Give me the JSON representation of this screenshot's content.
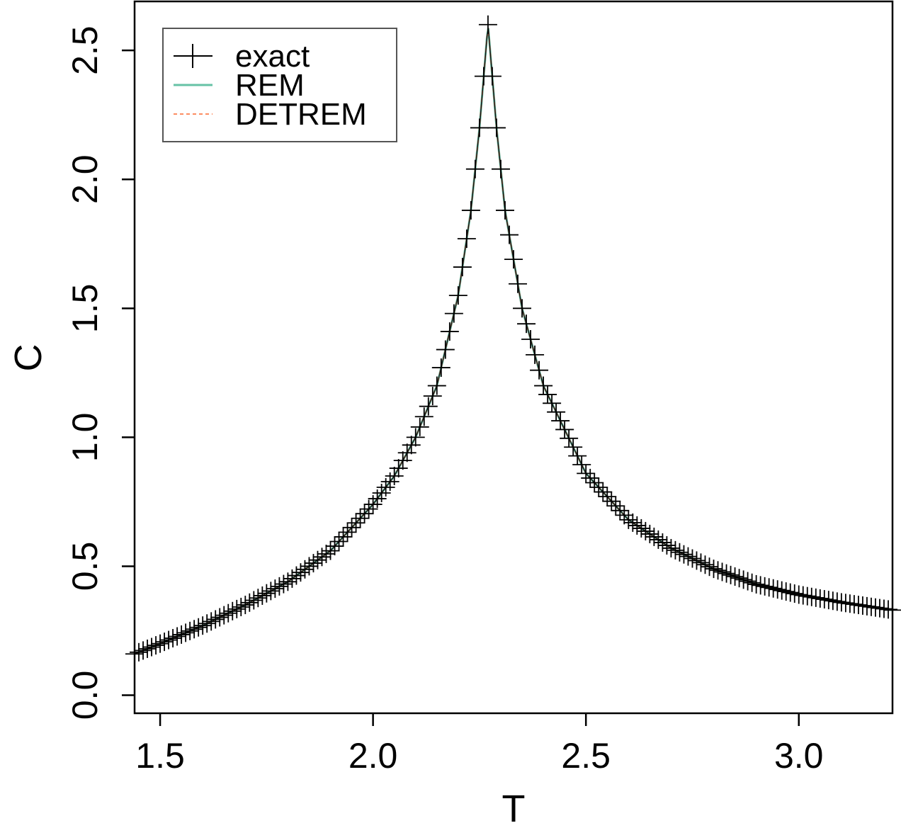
{
  "chart_data": {
    "type": "line",
    "xlabel": "T",
    "ylabel": "C",
    "xlim": [
      1.44,
      3.22
    ],
    "ylim": [
      -0.07,
      2.69
    ],
    "x_ticks": [
      "1.5",
      "2.0",
      "2.5",
      "3.0"
    ],
    "y_ticks": [
      "0.0",
      "0.5",
      "1.0",
      "1.5",
      "2.0",
      "2.5"
    ],
    "legend_position": "top-left",
    "series": [
      {
        "name": "exact",
        "style": "points-plus",
        "color": "#000000",
        "peak": {
          "x": 2.27,
          "y": 2.6
        }
      },
      {
        "name": "REM",
        "style": "solid-line",
        "color": "#66c2a5"
      },
      {
        "name": "DETREM",
        "style": "dashed-line",
        "color": "#fc8d62"
      }
    ],
    "x": [
      1.44,
      1.5,
      1.6,
      1.7,
      1.8,
      1.9,
      2.0,
      2.05,
      2.1,
      2.15,
      2.2,
      2.23,
      2.25,
      2.27,
      2.29,
      2.31,
      2.35,
      2.4,
      2.5,
      2.6,
      2.7,
      2.8,
      2.9,
      3.0,
      3.1,
      3.22
    ],
    "y": [
      0.16,
      0.2,
      0.27,
      0.35,
      0.44,
      0.56,
      0.74,
      0.85,
      1.0,
      1.2,
      1.55,
      1.88,
      2.2,
      2.6,
      2.2,
      1.88,
      1.5,
      1.2,
      0.86,
      0.68,
      0.57,
      0.49,
      0.43,
      0.39,
      0.36,
      0.33
    ]
  }
}
